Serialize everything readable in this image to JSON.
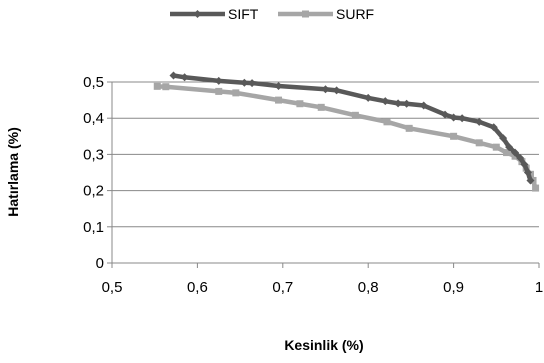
{
  "chart_data": {
    "type": "line",
    "title": "",
    "xlabel": "Kesinlik (%)",
    "ylabel": "Hatırlama (%)",
    "xlim": [
      0.5,
      1.0
    ],
    "ylim": [
      0,
      0.5
    ],
    "x_ticks": [
      "0,5",
      "0,6",
      "0,7",
      "0,8",
      "0,9",
      "1"
    ],
    "y_ticks": [
      "0",
      "0,1",
      "0,2",
      "0,3",
      "0,4",
      "0,5"
    ],
    "x_tick_values": [
      0.5,
      0.6,
      0.7,
      0.8,
      0.9,
      1.0
    ],
    "y_tick_values": [
      0,
      0.1,
      0.2,
      0.3,
      0.4,
      0.5
    ],
    "grid": "horizontal",
    "legend_position": "top-center",
    "series": [
      {
        "name": "SIFT",
        "color": "#595959",
        "marker": "diamond",
        "points": [
          [
            0.572,
            0.518
          ],
          [
            0.585,
            0.513
          ],
          [
            0.625,
            0.503
          ],
          [
            0.655,
            0.498
          ],
          [
            0.664,
            0.497
          ],
          [
            0.695,
            0.489
          ],
          [
            0.75,
            0.48
          ],
          [
            0.763,
            0.477
          ],
          [
            0.8,
            0.456
          ],
          [
            0.82,
            0.447
          ],
          [
            0.835,
            0.441
          ],
          [
            0.845,
            0.44
          ],
          [
            0.865,
            0.435
          ],
          [
            0.89,
            0.41
          ],
          [
            0.9,
            0.402
          ],
          [
            0.91,
            0.4
          ],
          [
            0.93,
            0.39
          ],
          [
            0.947,
            0.375
          ],
          [
            0.958,
            0.345
          ],
          [
            0.965,
            0.32
          ],
          [
            0.972,
            0.305
          ],
          [
            0.978,
            0.29
          ],
          [
            0.983,
            0.272
          ],
          [
            0.987,
            0.25
          ],
          [
            0.99,
            0.228
          ]
        ]
      },
      {
        "name": "SURF",
        "color": "#A6A6A6",
        "marker": "square",
        "points": [
          [
            0.553,
            0.488
          ],
          [
            0.563,
            0.487
          ],
          [
            0.625,
            0.474
          ],
          [
            0.645,
            0.47
          ],
          [
            0.695,
            0.45
          ],
          [
            0.72,
            0.44
          ],
          [
            0.745,
            0.43
          ],
          [
            0.785,
            0.408
          ],
          [
            0.822,
            0.39
          ],
          [
            0.848,
            0.372
          ],
          [
            0.9,
            0.35
          ],
          [
            0.93,
            0.332
          ],
          [
            0.95,
            0.32
          ],
          [
            0.962,
            0.305
          ],
          [
            0.972,
            0.295
          ],
          [
            0.98,
            0.28
          ],
          [
            0.985,
            0.262
          ],
          [
            0.99,
            0.245
          ],
          [
            0.993,
            0.228
          ],
          [
            0.996,
            0.207
          ]
        ]
      }
    ]
  }
}
